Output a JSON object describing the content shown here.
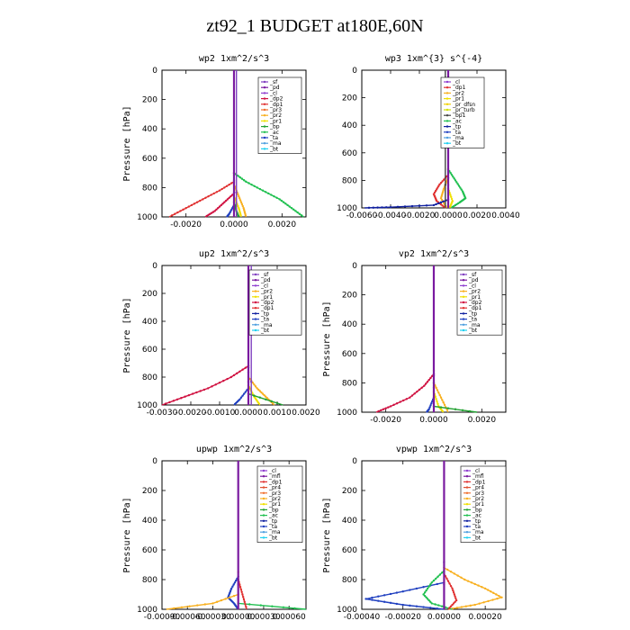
{
  "figure_title": "zt92_1  BUDGET at180E,60N",
  "colors": {
    "_sf": "#8040c0",
    "_pd": "#7a1aa0",
    "_cl": "#9040d0",
    "_dp2": "#d01040",
    "_dp1": "#e03030",
    "_pr3": "#f07030",
    "_pr2": "#f8b020",
    "_pr1": "#f0e000",
    "_bp": "#20a030",
    "_ac": "#20c050",
    "_ta": "#2040c0",
    "_ma": "#50a0e0",
    "_bt": "#20d0f0",
    "_tp": "#1020a0",
    "_mfl": "#7a1aa0",
    "_pr4": "#e05030",
    "_pr_dfsn": "#f0d000",
    "_pr_turb": "#d0e000"
  },
  "chart_data": [
    {
      "type": "line",
      "title": "wp2  1xm^2/s^3",
      "ylabel": "Pressure [hPa]",
      "xlim": [
        -0.003,
        0.003
      ],
      "ylim": [
        1000,
        0
      ],
      "xticks": [
        -0.002,
        0.0,
        0.002
      ],
      "xtick_labels": [
        "-0.0020",
        "0.0000",
        "0.0020"
      ],
      "yticks": [
        0,
        200,
        400,
        600,
        800,
        1000
      ],
      "ytick_labels": [
        "0",
        "200",
        "400",
        "600",
        "800",
        "1000"
      ],
      "legend": [
        "_sf",
        "_pd",
        "_cl",
        "_dp2",
        "_dp1",
        "_pr3",
        "_pr2",
        "_pr1",
        "_bp",
        "_ac",
        "_ta",
        "_ma",
        "_bt"
      ],
      "series": [
        {
          "name": "_ac",
          "y": [
            0,
            700,
            760,
            820,
            880,
            940,
            1000
          ],
          "x": [
            0,
            0,
            0.0005,
            0.0012,
            0.0019,
            0.0024,
            0.0029
          ]
        },
        {
          "name": "_dp1",
          "y": [
            0,
            760,
            820,
            880,
            940,
            1000
          ],
          "x": [
            0,
            0,
            -0.0006,
            -0.0013,
            -0.002,
            -0.0027
          ]
        },
        {
          "name": "_dp2",
          "y": [
            0,
            840,
            900,
            960,
            1000
          ],
          "x": [
            0,
            0,
            -0.0004,
            -0.0008,
            -0.0012
          ]
        },
        {
          "name": "_pr2",
          "y": [
            0,
            780,
            860,
            940,
            1000
          ],
          "x": [
            0,
            0,
            0.0002,
            0.0004,
            0.0005
          ]
        },
        {
          "name": "_pr1",
          "y": [
            0,
            860,
            940,
            1000
          ],
          "x": [
            0,
            0,
            0.0002,
            0.0003
          ]
        },
        {
          "name": "_bp",
          "y": [
            0,
            900,
            960,
            1000
          ],
          "x": [
            0,
            0,
            0.0001,
            0.0002
          ]
        },
        {
          "name": "_ta",
          "y": [
            0,
            920,
            980,
            1000
          ],
          "x": [
            0,
            0,
            -0.0002,
            -0.0003
          ]
        },
        {
          "name": "_sf",
          "y": [
            0,
            1000
          ],
          "x": [
            0.0001,
            0.0001
          ]
        },
        {
          "name": "_pd",
          "y": [
            0,
            1000
          ],
          "x": [
            0,
            0
          ]
        }
      ]
    },
    {
      "type": "line",
      "title": "wp3  1xm^{3} s^{-4}",
      "ylabel": "",
      "xlim": [
        -0.006,
        0.004
      ],
      "ylim": [
        1000,
        0
      ],
      "xticks": [
        -0.006,
        -0.004,
        -0.002,
        0.0,
        0.002,
        0.004
      ],
      "xtick_labels": [
        "-0.0060",
        "-0.0040",
        "-0.0020",
        "0.0000",
        "0.0020",
        "0.0040"
      ],
      "yticks": [
        0,
        200,
        400,
        600,
        800,
        1000
      ],
      "ytick_labels": [
        "0",
        "200",
        "400",
        "600",
        "800",
        "1000"
      ],
      "legend": [
        "_cl",
        "_dp1",
        "_pr2",
        "_pr1",
        "_pr_dfsn",
        "_pr_turb",
        "_bp1",
        "_ac",
        "_tp",
        "_ta",
        "_ma",
        "_bt"
      ],
      "series": [
        {
          "name": "_ac",
          "y": [
            0,
            720,
            800,
            880,
            930,
            960,
            1000
          ],
          "x": [
            0,
            0,
            0.0005,
            0.001,
            0.0012,
            0.0008,
            0.0002
          ]
        },
        {
          "name": "_dp1",
          "y": [
            0,
            760,
            830,
            900,
            950,
            1000
          ],
          "x": [
            0,
            0,
            -0.0006,
            -0.001,
            -0.0008,
            -0.0002
          ]
        },
        {
          "name": "_pr2",
          "y": [
            0,
            780,
            860,
            930,
            1000
          ],
          "x": [
            0,
            0,
            -0.0003,
            -0.0005,
            -0.0001
          ]
        },
        {
          "name": "_tp",
          "y": [
            0,
            940,
            980,
            995,
            1000
          ],
          "x": [
            0,
            0,
            -0.001,
            -0.004,
            -0.0058
          ]
        },
        {
          "name": "_pr1",
          "y": [
            0,
            860,
            950,
            1000
          ],
          "x": [
            0,
            0,
            0.0003,
            0.0001
          ]
        },
        {
          "name": "_cl",
          "y": [
            0,
            1000
          ],
          "x": [
            0,
            0
          ]
        },
        {
          "name": "_bp1",
          "y": [
            0,
            1000
          ],
          "x": [
            -0.0002,
            -0.0002
          ]
        }
      ]
    },
    {
      "type": "line",
      "title": "up2  1xm^2/s^3",
      "ylabel": "Pressure [hPa]",
      "xlim": [
        -0.003,
        0.002
      ],
      "ylim": [
        1000,
        0
      ],
      "xticks": [
        -0.003,
        -0.002,
        -0.001,
        0.0,
        0.001,
        0.002
      ],
      "xtick_labels": [
        "-0.0030",
        "-0.0020",
        "-0.0010",
        "0.0000",
        "0.0010",
        "0.0020"
      ],
      "yticks": [
        0,
        200,
        400,
        600,
        800,
        1000
      ],
      "ytick_labels": [
        "0",
        "200",
        "400",
        "600",
        "800",
        "1000"
      ],
      "legend": [
        "_sf",
        "_pd",
        "_cl",
        "_pr2",
        "_pr1",
        "_dp2",
        "_dp1",
        "_tp",
        "_ta",
        "_ma",
        "_bt"
      ],
      "series": [
        {
          "name": "_dp2",
          "y": [
            0,
            720,
            800,
            880,
            940,
            1000
          ],
          "x": [
            0,
            0,
            -0.0006,
            -0.0014,
            -0.0022,
            -0.003
          ]
        },
        {
          "name": "_pr2",
          "y": [
            0,
            800,
            880,
            940,
            1000
          ],
          "x": [
            0,
            0,
            0.0003,
            0.0006,
            0.0009
          ]
        },
        {
          "name": "_pr1",
          "y": [
            0,
            860,
            940,
            1000
          ],
          "x": [
            0,
            0,
            0.0002,
            0.0004
          ]
        },
        {
          "name": "_ta",
          "y": [
            0,
            880,
            960,
            1000
          ],
          "x": [
            0,
            0,
            -0.0003,
            -0.0005
          ]
        },
        {
          "name": "_bp",
          "y": [
            0,
            920,
            1000
          ],
          "x": [
            0,
            0,
            0.0012
          ]
        },
        {
          "name": "_sf",
          "y": [
            0,
            1000
          ],
          "x": [
            0.0001,
            0.0001
          ]
        },
        {
          "name": "_pd",
          "y": [
            0,
            1000
          ],
          "x": [
            0,
            0
          ]
        }
      ]
    },
    {
      "type": "line",
      "title": "vp2  1xm^2/s^3",
      "ylabel": "Pressure [hPa]",
      "xlim": [
        -0.003,
        0.003
      ],
      "ylim": [
        1000,
        0
      ],
      "xticks": [
        -0.002,
        0.0,
        0.002
      ],
      "xtick_labels": [
        "-0.0020",
        "0.0000",
        "0.0020"
      ],
      "yticks": [
        0,
        200,
        400,
        600,
        800,
        1000
      ],
      "ytick_labels": [
        "0",
        "200",
        "400",
        "600",
        "800",
        "1000"
      ],
      "legend": [
        "_sf",
        "_pd",
        "_cl",
        "_pr2",
        "_pr1",
        "_dp2",
        "_dp1",
        "_tp",
        "_ta",
        "_ma",
        "_bt"
      ],
      "series": [
        {
          "name": "_dp2",
          "y": [
            0,
            740,
            820,
            900,
            960,
            1000
          ],
          "x": [
            0,
            0,
            -0.0004,
            -0.001,
            -0.0018,
            -0.0024
          ]
        },
        {
          "name": "_pr2",
          "y": [
            0,
            800,
            900,
            1000
          ],
          "x": [
            0,
            0,
            0.0003,
            0.0006
          ]
        },
        {
          "name": "_pr1",
          "y": [
            0,
            860,
            960,
            1000
          ],
          "x": [
            0,
            0,
            0.0002,
            0.0004
          ]
        },
        {
          "name": "_ta",
          "y": [
            0,
            900,
            980,
            1000
          ],
          "x": [
            0,
            0,
            -0.0002,
            -0.0003
          ]
        },
        {
          "name": "_bp",
          "y": [
            0,
            960,
            1000
          ],
          "x": [
            0,
            0,
            0.0018
          ]
        },
        {
          "name": "_sf",
          "y": [
            0,
            1000
          ],
          "x": [
            0,
            0
          ]
        }
      ]
    },
    {
      "type": "line",
      "title": "upwp  1xm^2/s^3",
      "ylabel": "Pressure [hPa]",
      "xlim": [
        -0.0009,
        0.0008
      ],
      "ylim": [
        1000,
        0
      ],
      "xticks": [
        -0.0009,
        -0.0006,
        -0.0003,
        0.0,
        0.0003,
        0.0006
      ],
      "xtick_labels": [
        "-0.00090",
        "-0.00060",
        "-0.00030",
        "0.00000",
        "0.00030",
        "0.00060"
      ],
      "yticks": [
        0,
        200,
        400,
        600,
        800,
        1000
      ],
      "ytick_labels": [
        "0",
        "200",
        "400",
        "600",
        "800",
        "1000"
      ],
      "legend": [
        "_cl",
        "_mfl",
        "_dp1",
        "_pr4",
        "_pr3",
        "_pr2",
        "_pr1",
        "_bp",
        "_ac",
        "_tp",
        "_ta",
        "_ma",
        "_bt"
      ],
      "series": [
        {
          "name": "_ta",
          "y": [
            0,
            780,
            860,
            920,
            960,
            1000
          ],
          "x": [
            0,
            0,
            -8e-05,
            -0.00012,
            -5e-05,
            0
          ]
        },
        {
          "name": "_pr2",
          "y": [
            0,
            900,
            960,
            1000
          ],
          "x": [
            0,
            0,
            -0.0003,
            -0.00085
          ]
        },
        {
          "name": "_ac",
          "y": [
            0,
            960,
            1000
          ],
          "x": [
            0,
            0,
            0.0008
          ]
        },
        {
          "name": "_dp1",
          "y": [
            0,
            800,
            900,
            1000
          ],
          "x": [
            0,
            0,
            5e-05,
            0.0001
          ]
        },
        {
          "name": "_cl",
          "y": [
            0,
            1000
          ],
          "x": [
            0,
            0
          ]
        }
      ]
    },
    {
      "type": "line",
      "title": "vpwp  1xm^2/s^3",
      "ylabel": "Pressure [hPa]",
      "xlim": [
        -0.0004,
        0.0003
      ],
      "ylim": [
        1000,
        0
      ],
      "xticks": [
        -0.0004,
        -0.0002,
        0.0,
        0.0002
      ],
      "xtick_labels": [
        "-0.00040",
        "-0.00020",
        "0.00000",
        "0.00020"
      ],
      "yticks": [
        0,
        200,
        400,
        600,
        800,
        1000
      ],
      "ytick_labels": [
        "0",
        "200",
        "400",
        "600",
        "800",
        "1000"
      ],
      "legend": [
        "_cl",
        "_mfl",
        "_dp1",
        "_pr4",
        "_pr3",
        "_pr2",
        "_pr1",
        "_bp",
        "_ac",
        "_tp",
        "_ta",
        "_ma",
        "_bt"
      ],
      "series": [
        {
          "name": "_pr2",
          "y": [
            0,
            720,
            800,
            860,
            920,
            970,
            1000
          ],
          "x": [
            0,
            0,
            0.0001,
            0.0002,
            0.00028,
            0.00015,
            2e-05
          ]
        },
        {
          "name": "_ta",
          "y": [
            0,
            820,
            880,
            930,
            970,
            1000
          ],
          "x": [
            0,
            0,
            -0.0002,
            -0.00038,
            -0.0002,
            0
          ]
        },
        {
          "name": "_ac",
          "y": [
            0,
            740,
            820,
            900,
            960,
            1000
          ],
          "x": [
            0,
            0,
            -6e-05,
            -0.0001,
            -6e-05,
            4e-05
          ]
        },
        {
          "name": "_dp1",
          "y": [
            0,
            760,
            860,
            940,
            1000
          ],
          "x": [
            0,
            0,
            4e-05,
            6e-05,
            2e-05
          ]
        },
        {
          "name": "_cl",
          "y": [
            0,
            1000
          ],
          "x": [
            0,
            0
          ]
        }
      ]
    }
  ]
}
